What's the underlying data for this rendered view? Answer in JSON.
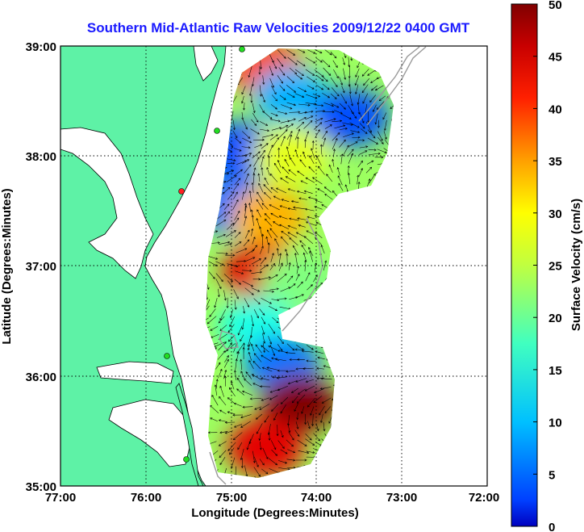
{
  "title": "Southern Mid-Atlantic Raw Velocities 2009/12/22 0400 GMT",
  "x_axis": {
    "label": "Longitude (Degrees:Minutes)",
    "ticks": [
      "77:00",
      "76:00",
      "75:00",
      "74:00",
      "73:00",
      "72:00"
    ]
  },
  "y_axis": {
    "label": "Latitude (Degrees:Minutes)",
    "ticks": [
      "39:00",
      "38:00",
      "37:00",
      "36:00",
      "35:00"
    ]
  },
  "colorbar": {
    "label": "Surface Velocity (cm/s)",
    "ticks": [
      "50",
      "45",
      "40",
      "35",
      "30",
      "25",
      "20",
      "15",
      "10",
      "5",
      "0"
    ]
  },
  "colors": {
    "land": "#5ef2a6",
    "coastline": "#000000",
    "title": "#1a1aff",
    "isobath": "#9a9a9a",
    "station": "#22dd22",
    "station_alt": "#ff2222"
  },
  "chart_data": {
    "type": "heatmap",
    "title": "Southern Mid-Atlantic Raw Velocities 2009/12/22 0400 GMT",
    "xlabel": "Longitude (Degrees:Minutes)",
    "ylabel": "Latitude (Degrees:Minutes)",
    "xlim": [
      -77,
      -72
    ],
    "ylim": [
      35,
      39
    ],
    "color_range": [
      0,
      50
    ],
    "color_units": "cm/s",
    "grid": true,
    "colormap": "jet",
    "regions": [
      {
        "lon": -74.6,
        "lat": 38.8,
        "speed": 40
      },
      {
        "lon": -74.3,
        "lat": 38.55,
        "speed": 15
      },
      {
        "lon": -73.6,
        "lat": 38.35,
        "speed": 10
      },
      {
        "lon": -74.9,
        "lat": 38.05,
        "speed": 10
      },
      {
        "lon": -74.3,
        "lat": 38.0,
        "speed": 30
      },
      {
        "lon": -75.0,
        "lat": 37.55,
        "speed": 12
      },
      {
        "lon": -74.55,
        "lat": 37.45,
        "speed": 35
      },
      {
        "lon": -74.65,
        "lat": 36.95,
        "speed": 45
      },
      {
        "lon": -74.2,
        "lat": 36.85,
        "speed": 25
      },
      {
        "lon": -74.7,
        "lat": 36.45,
        "speed": 20
      },
      {
        "lon": -74.4,
        "lat": 36.1,
        "speed": 12
      },
      {
        "lon": -74.2,
        "lat": 35.75,
        "speed": 50
      },
      {
        "lon": -74.6,
        "lat": 35.35,
        "speed": 45
      }
    ]
  }
}
